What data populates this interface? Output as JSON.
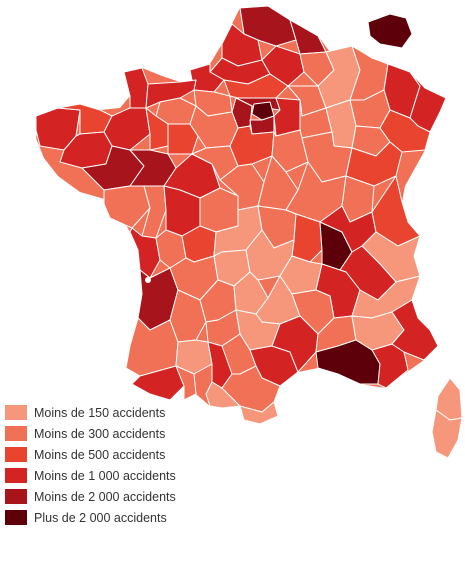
{
  "legend": {
    "items": [
      {
        "label": "Moins de 150 accidents",
        "color": "#f6977c"
      },
      {
        "label": "Moins de 300 accidents",
        "color": "#f07155"
      },
      {
        "label": "Moins de 500 accidents",
        "color": "#e8442f"
      },
      {
        "label": "Moins de 1 000 accidents",
        "color": "#d32322"
      },
      {
        "label": "Moins de 2 000 accidents",
        "color": "#a8141b"
      },
      {
        "label": "Plus de 2 000 accidents",
        "color": "#5e0009"
      }
    ]
  },
  "colors": {
    "background": "#ffffff",
    "border": "#ffffff"
  }
}
